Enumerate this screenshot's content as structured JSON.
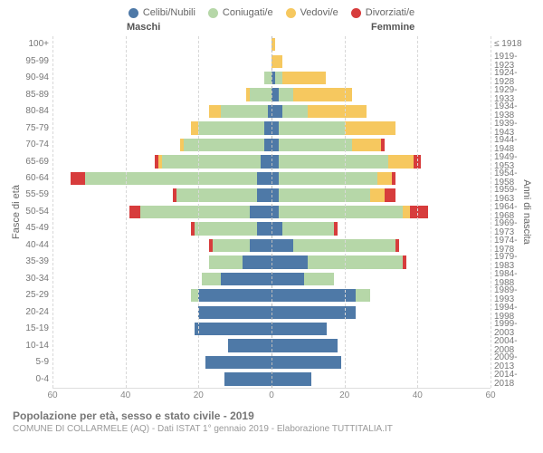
{
  "type": "population-pyramid-stacked",
  "legend": {
    "items": [
      {
        "label": "Celibi/Nubili",
        "color": "#4e79a7"
      },
      {
        "label": "Coniugati/e",
        "color": "#b6d7a8"
      },
      {
        "label": "Vedovi/e",
        "color": "#f6c85f"
      },
      {
        "label": "Divorziati/e",
        "color": "#d73c3c"
      }
    ],
    "label_fontsize": 11
  },
  "headers": {
    "male": "Maschi",
    "female": "Femmine"
  },
  "y_axis_left": {
    "label": "Fasce di età",
    "fontsize": 11
  },
  "y_axis_right": {
    "label": "Anni di nascita",
    "fontsize": 11
  },
  "x_axis": {
    "max": 60,
    "ticks": [
      60,
      40,
      20,
      0,
      20,
      40,
      60
    ],
    "tick_positions_pct": [
      0,
      16.67,
      33.33,
      50,
      66.67,
      83.33,
      100
    ],
    "grid_color": "#d8d8d8",
    "center_color": "#bbbbbb"
  },
  "colors": {
    "celibi": "#4e79a7",
    "coniugati": "#b6d7a8",
    "vedovi": "#f6c85f",
    "divorziati": "#d73c3c",
    "text": "#777777",
    "background": "#ffffff"
  },
  "age_groups": [
    {
      "age": "100+",
      "birth": "≤ 1918",
      "m": [
        0,
        0,
        0,
        0
      ],
      "f": [
        0,
        0,
        1,
        0
      ]
    },
    {
      "age": "95-99",
      "birth": "1919-1923",
      "m": [
        0,
        0,
        0,
        0
      ],
      "f": [
        0,
        0,
        3,
        0
      ]
    },
    {
      "age": "90-94",
      "birth": "1924-1928",
      "m": [
        0,
        2,
        0,
        0
      ],
      "f": [
        1,
        2,
        12,
        0
      ]
    },
    {
      "age": "85-89",
      "birth": "1929-1933",
      "m": [
        0,
        6,
        1,
        0
      ],
      "f": [
        2,
        4,
        16,
        0
      ]
    },
    {
      "age": "80-84",
      "birth": "1934-1938",
      "m": [
        1,
        13,
        3,
        0
      ],
      "f": [
        3,
        7,
        16,
        0
      ]
    },
    {
      "age": "75-79",
      "birth": "1939-1943",
      "m": [
        2,
        18,
        2,
        0
      ],
      "f": [
        2,
        18,
        14,
        0
      ]
    },
    {
      "age": "70-74",
      "birth": "1944-1948",
      "m": [
        2,
        22,
        1,
        0
      ],
      "f": [
        2,
        20,
        8,
        1
      ]
    },
    {
      "age": "65-69",
      "birth": "1949-1953",
      "m": [
        3,
        27,
        1,
        1
      ],
      "f": [
        2,
        30,
        7,
        2
      ]
    },
    {
      "age": "60-64",
      "birth": "1954-1958",
      "m": [
        4,
        47,
        0,
        4
      ],
      "f": [
        2,
        27,
        4,
        1
      ]
    },
    {
      "age": "55-59",
      "birth": "1959-1963",
      "m": [
        4,
        22,
        0,
        1
      ],
      "f": [
        2,
        25,
        4,
        3
      ]
    },
    {
      "age": "50-54",
      "birth": "1964-1968",
      "m": [
        6,
        30,
        0,
        3
      ],
      "f": [
        2,
        34,
        2,
        5
      ]
    },
    {
      "age": "45-49",
      "birth": "1969-1973",
      "m": [
        4,
        17,
        0,
        1
      ],
      "f": [
        3,
        14,
        0,
        1
      ]
    },
    {
      "age": "40-44",
      "birth": "1974-1978",
      "m": [
        6,
        10,
        0,
        1
      ],
      "f": [
        6,
        28,
        0,
        1
      ]
    },
    {
      "age": "35-39",
      "birth": "1979-1983",
      "m": [
        8,
        9,
        0,
        0
      ],
      "f": [
        10,
        26,
        0,
        1
      ]
    },
    {
      "age": "30-34",
      "birth": "1984-1988",
      "m": [
        14,
        5,
        0,
        0
      ],
      "f": [
        9,
        8,
        0,
        0
      ]
    },
    {
      "age": "25-29",
      "birth": "1989-1993",
      "m": [
        20,
        2,
        0,
        0
      ],
      "f": [
        23,
        4,
        0,
        0
      ]
    },
    {
      "age": "20-24",
      "birth": "1994-1998",
      "m": [
        20,
        0,
        0,
        0
      ],
      "f": [
        23,
        0,
        0,
        0
      ]
    },
    {
      "age": "15-19",
      "birth": "1999-2003",
      "m": [
        21,
        0,
        0,
        0
      ],
      "f": [
        15,
        0,
        0,
        0
      ]
    },
    {
      "age": "10-14",
      "birth": "2004-2008",
      "m": [
        12,
        0,
        0,
        0
      ],
      "f": [
        18,
        0,
        0,
        0
      ]
    },
    {
      "age": "5-9",
      "birth": "2009-2013",
      "m": [
        18,
        0,
        0,
        0
      ],
      "f": [
        19,
        0,
        0,
        0
      ]
    },
    {
      "age": "0-4",
      "birth": "2014-2018",
      "m": [
        13,
        0,
        0,
        0
      ],
      "f": [
        11,
        0,
        0,
        0
      ]
    }
  ],
  "footer": {
    "title": "Popolazione per età, sesso e stato civile - 2019",
    "subtitle": "COMUNE DI COLLARMELE (AQ) - Dati ISTAT 1° gennaio 2019 - Elaborazione TUTTITALIA.IT",
    "title_fontsize": 12,
    "subtitle_fontsize": 10
  }
}
